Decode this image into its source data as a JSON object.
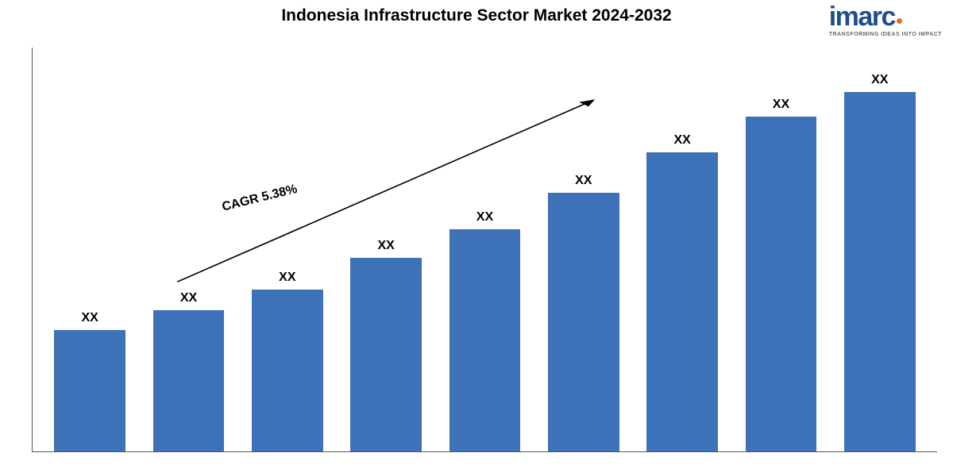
{
  "title": {
    "text": "Indonesia Infrastructure Sector Market 2024-2032",
    "fontsize": 21,
    "color": "#000000",
    "weight": 700
  },
  "logo": {
    "text": "imarc",
    "tagline": "TRANSFORMING IDEAS INTO IMPACT",
    "main_color": "#1e4e8c",
    "dot_color": "#e36f1e",
    "tag_color": "#6a6a6a",
    "main_fontsize": 34,
    "tag_fontsize": 7
  },
  "chart": {
    "type": "bar",
    "background_color": "#ffffff",
    "axis_color": "#555555",
    "bars": [
      {
        "label": "XX",
        "height_pct": 30
      },
      {
        "label": "XX",
        "height_pct": 35
      },
      {
        "label": "XX",
        "height_pct": 40
      },
      {
        "label": "XX",
        "height_pct": 48
      },
      {
        "label": "XX",
        "height_pct": 55
      },
      {
        "label": "XX",
        "height_pct": 64
      },
      {
        "label": "XX",
        "height_pct": 74
      },
      {
        "label": "XX",
        "height_pct": 83
      },
      {
        "label": "XX",
        "height_pct": 89
      }
    ],
    "bar_color": "#3d71b8",
    "bar_width_pct": 72,
    "label_fontsize": 16,
    "label_weight": 700,
    "label_color": "#000000",
    "cagr": {
      "text": "CAGR 5.38%",
      "fontsize": 16,
      "weight": 700,
      "color": "#000000",
      "rotation_deg": -14,
      "pos_left_pct": 21,
      "pos_top_pct": 38
    },
    "arrow": {
      "color": "#000000",
      "stroke_width": 1.2,
      "x1_pct": 16,
      "y1_pct": 58,
      "x2_pct": 62,
      "y2_pct": 13
    }
  }
}
